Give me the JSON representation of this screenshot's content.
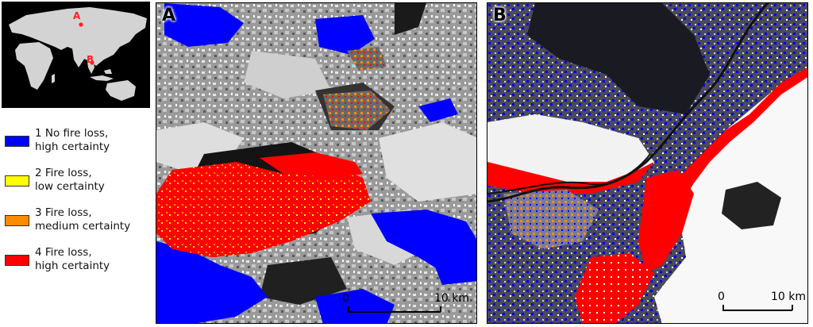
{
  "inset_map": {
    "marker_a": "A",
    "marker_b": "B",
    "land_color": "#d3d3d3",
    "marker_color": "#ff2020"
  },
  "legend": [
    {
      "line1": "1 No fire loss,",
      "line2": "high certainty",
      "color": "#0000ff"
    },
    {
      "line1": "2 Fire loss,",
      "line2": "low certainty",
      "color": "#ffff00"
    },
    {
      "line1": "3 Fire loss,",
      "line2": "medium certainty",
      "color": "#ff8c00"
    },
    {
      "line1": "4 Fire loss,",
      "line2": "high certainty",
      "color": "#ff0000"
    }
  ],
  "panels": [
    {
      "label": "A",
      "scale_start": "0",
      "scale_end": "10 km"
    },
    {
      "label": "B",
      "scale_start": "0",
      "scale_end": "10 km"
    }
  ]
}
